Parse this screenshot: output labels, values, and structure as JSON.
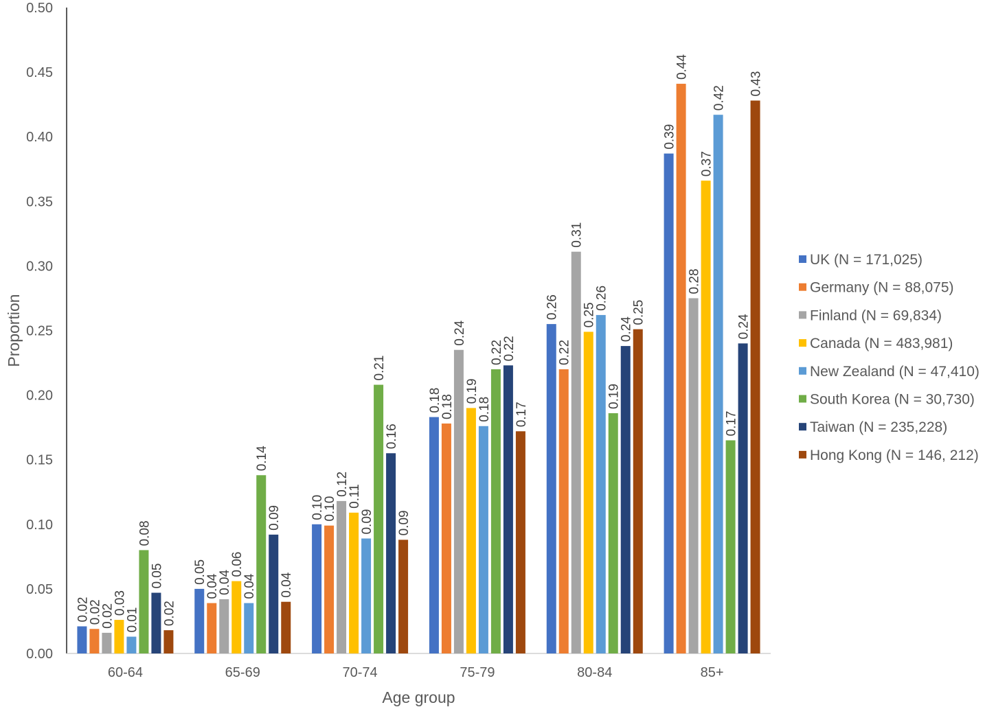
{
  "chart_data": {
    "type": "bar",
    "title": "",
    "xlabel": "Age group",
    "ylabel": "Proportion",
    "ylim": [
      0,
      0.5
    ],
    "y_ticks": [
      "0.00",
      "0.05",
      "0.10",
      "0.15",
      "0.20",
      "0.25",
      "0.30",
      "0.35",
      "0.40",
      "0.45",
      "0.50"
    ],
    "grid": false,
    "legend_position": "right",
    "categories": [
      "60-64",
      "65-69",
      "70-74",
      "75-79",
      "80-84",
      "85+"
    ],
    "series": [
      {
        "name": "UK (N = 171,025)",
        "color": "#4472C4",
        "values": [
          0.021,
          0.05,
          0.1,
          0.183,
          0.255,
          0.387
        ],
        "labels": [
          "0.02",
          "0.05",
          "0.10",
          "0.18",
          "0.26",
          "0.39"
        ]
      },
      {
        "name": "Germany (N = 88,075)",
        "color": "#ED7D31",
        "values": [
          0.019,
          0.039,
          0.099,
          0.178,
          0.22,
          0.441
        ],
        "labels": [
          "0.02",
          "0.04",
          "0.10",
          "0.18",
          "0.22",
          "0.44"
        ]
      },
      {
        "name": "Finland (N = 69,834)",
        "color": "#A5A5A5",
        "values": [
          0.016,
          0.042,
          0.118,
          0.235,
          0.311,
          0.275
        ],
        "labels": [
          "0.02",
          "0.04",
          "0.12",
          "0.24",
          "0.31",
          "0.28"
        ]
      },
      {
        "name": "Canada (N = 483,981)",
        "color": "#FFC000",
        "values": [
          0.026,
          0.056,
          0.109,
          0.19,
          0.249,
          0.366
        ],
        "labels": [
          "0.03",
          "0.06",
          "0.11",
          "0.19",
          "0.25",
          "0.37"
        ]
      },
      {
        "name": "New Zealand (N = 47,410)",
        "color": "#5B9BD5",
        "values": [
          0.013,
          0.039,
          0.089,
          0.176,
          0.262,
          0.417
        ],
        "labels": [
          "0.01",
          "0.04",
          "0.09",
          "0.18",
          "0.26",
          "0.42"
        ]
      },
      {
        "name": "South Korea (N = 30,730)",
        "color": "#70AD47",
        "values": [
          0.08,
          0.138,
          0.208,
          0.22,
          0.186,
          0.165
        ],
        "labels": [
          "0.08",
          "0.14",
          "0.21",
          "0.22",
          "0.19",
          "0.17"
        ]
      },
      {
        "name": "Taiwan (N = 235,228)",
        "color": "#264478",
        "values": [
          0.047,
          0.092,
          0.155,
          0.223,
          0.238,
          0.24
        ],
        "labels": [
          "0.05",
          "0.09",
          "0.16",
          "0.22",
          "0.24",
          "0.24"
        ]
      },
      {
        "name": "Hong Kong (N = 146, 212)",
        "color": "#9E480E",
        "values": [
          0.018,
          0.04,
          0.088,
          0.172,
          0.251,
          0.428
        ],
        "labels": [
          "0.02",
          "0.04",
          "0.09",
          "0.17",
          "0.25",
          "0.43"
        ]
      }
    ]
  }
}
